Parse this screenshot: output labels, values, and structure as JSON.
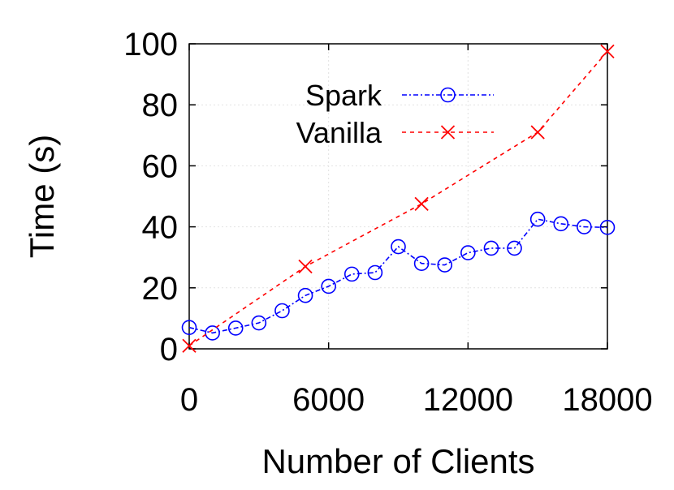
{
  "chart_data": {
    "type": "line",
    "title": "",
    "xlabel": "Number of Clients",
    "ylabel": "Time (s)",
    "xlim": [
      0,
      18000
    ],
    "ylim": [
      0,
      100
    ],
    "xticks": [
      0,
      6000,
      12000,
      18000
    ],
    "yticks": [
      0,
      20,
      40,
      60,
      80,
      100
    ],
    "xtick_labels": [
      "0",
      "6000",
      "12000",
      "18000"
    ],
    "ytick_labels": [
      "0",
      "20",
      "40",
      "60",
      "80",
      "100"
    ],
    "grid": true,
    "legend": "top-center",
    "series": [
      {
        "name": "Spark",
        "color": "#0000ff",
        "marker": "circle",
        "line_style": "dash-dot",
        "x": [
          0,
          1000,
          2000,
          3000,
          4000,
          5000,
          6000,
          7000,
          8000,
          9000,
          10000,
          11000,
          12000,
          13000,
          14000,
          15000,
          16000,
          17000,
          18000
        ],
        "y": [
          7,
          5.2,
          6.8,
          8.5,
          12.5,
          17.5,
          20.5,
          24.5,
          25,
          33.5,
          28,
          27.5,
          31.5,
          33,
          33,
          42.5,
          41,
          40,
          39.8
        ]
      },
      {
        "name": "Vanilla",
        "color": "#ff0000",
        "marker": "x",
        "line_style": "dashed",
        "x": [
          0,
          5000,
          10000,
          15000,
          18000
        ],
        "y": [
          1,
          27,
          47.5,
          71,
          97.5
        ]
      }
    ]
  }
}
